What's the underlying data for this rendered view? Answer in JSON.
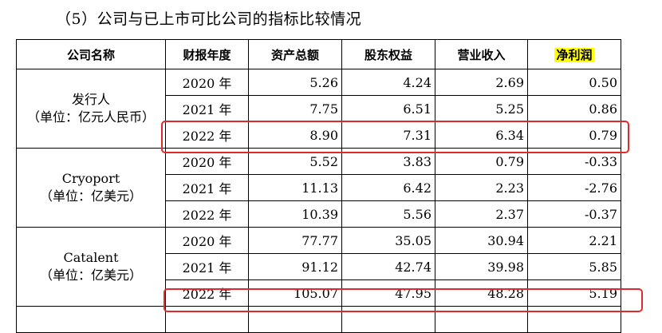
{
  "heading": "（5）公司与已上市可比公司的指标比较情况",
  "table": {
    "headers": [
      "公司名称",
      "财报年度",
      "资产总额",
      "股东权益",
      "营业收入",
      "净利润"
    ],
    "groups": [
      {
        "name": "发行人",
        "unit": "（单位：亿元人民币）",
        "rows": [
          {
            "year": "2020 年",
            "assets": "5.26",
            "equity": "4.24",
            "revenue": "2.69",
            "profit": "0.50"
          },
          {
            "year": "2021 年",
            "assets": "7.75",
            "equity": "6.51",
            "revenue": "5.25",
            "profit": "0.86"
          },
          {
            "year": "2022 年",
            "assets": "8.90",
            "equity": "7.31",
            "revenue": "6.34",
            "profit": "0.79"
          }
        ]
      },
      {
        "name": "Cryoport",
        "unit": "（单位：亿美元）",
        "rows": [
          {
            "year": "2020 年",
            "assets": "5.52",
            "equity": "3.83",
            "revenue": "0.79",
            "profit": "-0.33"
          },
          {
            "year": "2021 年",
            "assets": "11.13",
            "equity": "6.42",
            "revenue": "2.23",
            "profit": "-2.76"
          },
          {
            "year": "2022 年",
            "assets": "10.39",
            "equity": "5.56",
            "revenue": "2.37",
            "profit": "-0.37"
          }
        ]
      },
      {
        "name": "Catalent",
        "unit": "（单位：亿美元）",
        "rows": [
          {
            "year": "2020 年",
            "assets": "77.77",
            "equity": "35.05",
            "revenue": "30.94",
            "profit": "2.21"
          },
          {
            "year": "2021 年",
            "assets": "91.12",
            "equity": "42.74",
            "revenue": "39.98",
            "profit": "5.85"
          },
          {
            "year": "2022 年",
            "assets": "105.07",
            "equity": "47.95",
            "revenue": "48.28",
            "profit": "5.19"
          }
        ]
      }
    ]
  },
  "colors": {
    "highlight": "#ffff00",
    "annotation_box": "#e02a2a"
  }
}
